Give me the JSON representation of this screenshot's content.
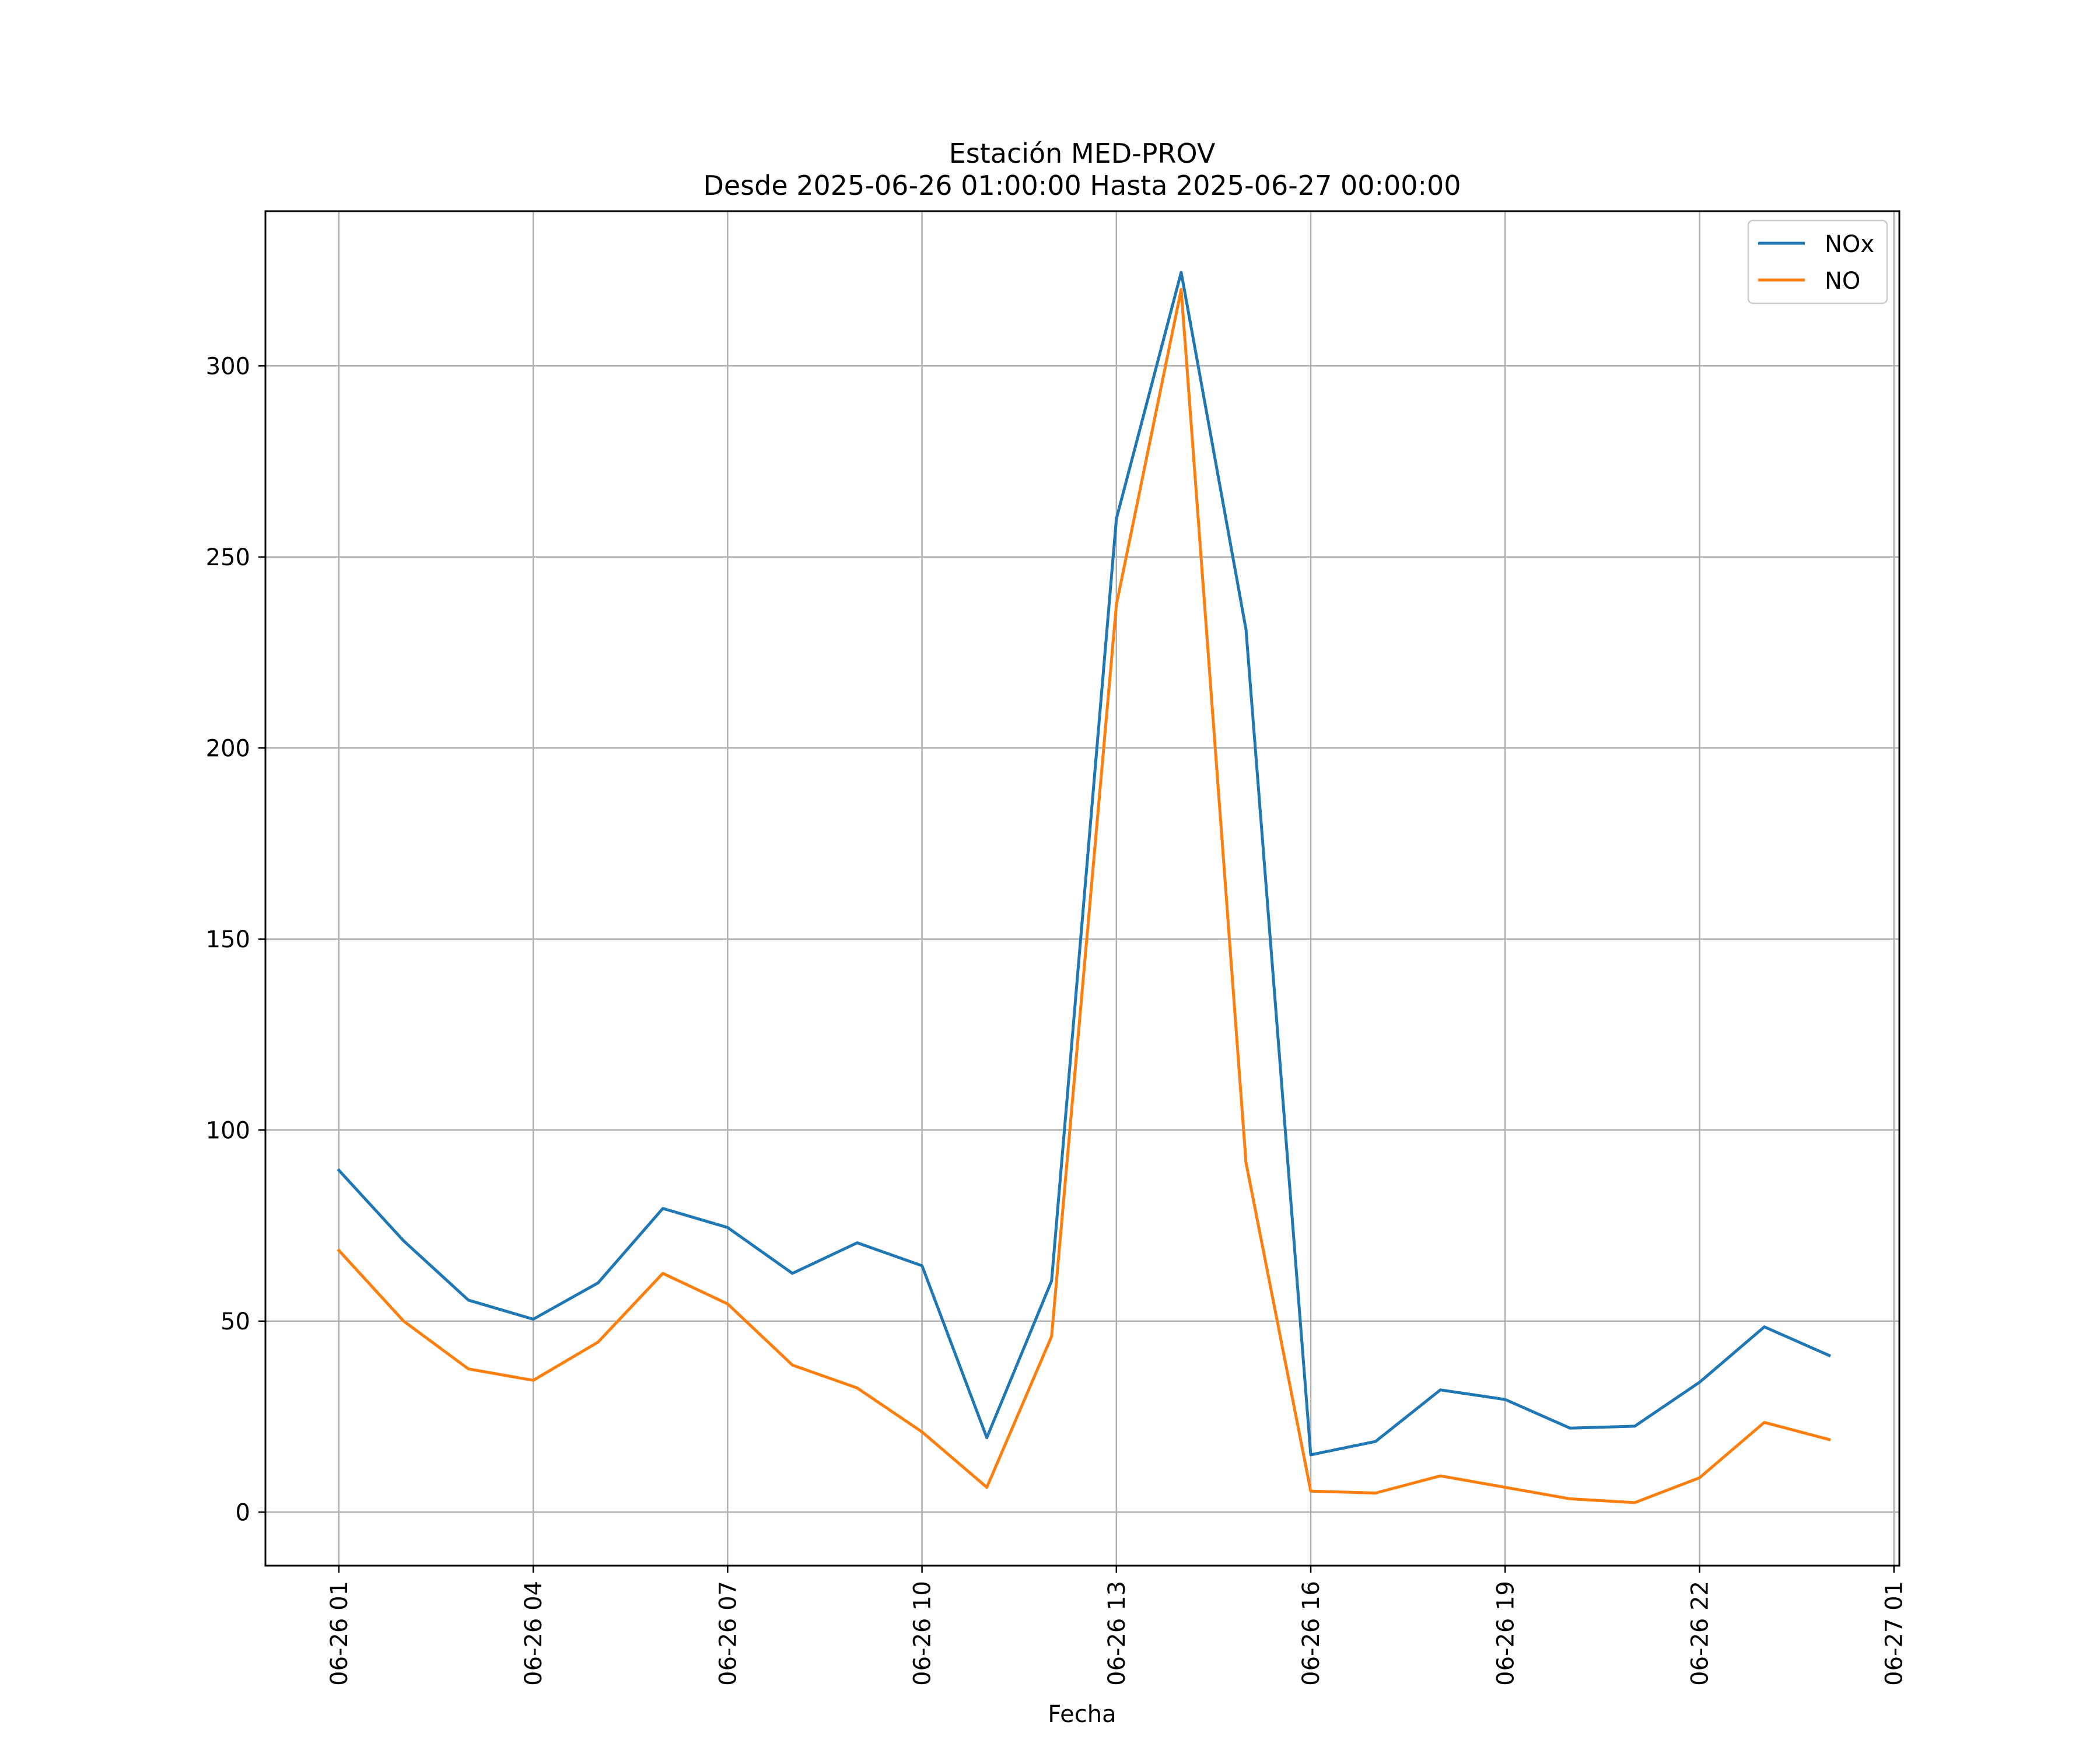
{
  "chart_data": {
    "type": "line",
    "title": "Estación MED-PROV",
    "subtitle": "Desde 2025-06-26 01:00:00 Hasta 2025-06-27 00:00:00",
    "xlabel": "Fecha",
    "ylabel": "",
    "x": [
      "2025-06-26 01:00",
      "2025-06-26 02:00",
      "2025-06-26 03:00",
      "2025-06-26 04:00",
      "2025-06-26 05:00",
      "2025-06-26 06:00",
      "2025-06-26 07:00",
      "2025-06-26 08:00",
      "2025-06-26 09:00",
      "2025-06-26 10:00",
      "2025-06-26 11:00",
      "2025-06-26 12:00",
      "2025-06-26 13:00",
      "2025-06-26 14:00",
      "2025-06-26 15:00",
      "2025-06-26 16:00",
      "2025-06-26 17:00",
      "2025-06-26 18:00",
      "2025-06-26 19:00",
      "2025-06-26 20:00",
      "2025-06-26 21:00",
      "2025-06-26 22:00",
      "2025-06-26 23:00",
      "2025-06-27 00:00"
    ],
    "series": [
      {
        "name": "NOx",
        "color": "#1f77b4",
        "values": [
          89.5,
          71,
          55.5,
          50.5,
          60,
          79.5,
          74.5,
          62.5,
          70.5,
          64.5,
          19.5,
          60.5,
          260,
          324.5,
          231,
          15,
          18.5,
          32,
          29.5,
          22,
          22.5,
          34,
          48.5,
          41
        ]
      },
      {
        "name": "NO",
        "color": "#ff7f0e",
        "values": [
          68.5,
          50,
          37.5,
          34.5,
          44.5,
          62.5,
          54.5,
          38.5,
          32.5,
          21,
          6.5,
          46,
          237.5,
          320,
          91.5,
          5.5,
          5,
          9.5,
          6.5,
          3.5,
          2.5,
          9,
          23.5,
          19
        ]
      }
    ],
    "x_ticks": [
      "06-26 01",
      "06-26 04",
      "06-26 07",
      "06-26 10",
      "06-26 13",
      "06-26 16",
      "06-26 19",
      "06-26 22",
      "06-27 01"
    ],
    "x_tick_values": [
      "2025-06-26 01:00",
      "2025-06-26 04:00",
      "2025-06-26 07:00",
      "2025-06-26 10:00",
      "2025-06-26 13:00",
      "2025-06-26 16:00",
      "2025-06-26 19:00",
      "2025-06-26 22:00",
      "2025-06-27 01:00"
    ],
    "xlim": [
      "2025-06-25 23:52",
      "2025-06-27 01:05"
    ],
    "y_ticks": [
      "0",
      "50",
      "100",
      "150",
      "200",
      "250",
      "300"
    ],
    "y_tick_values": [
      0,
      50,
      100,
      150,
      200,
      250,
      300
    ],
    "ylim": [
      -14,
      340.5
    ],
    "grid": true,
    "legend": "top-right"
  }
}
